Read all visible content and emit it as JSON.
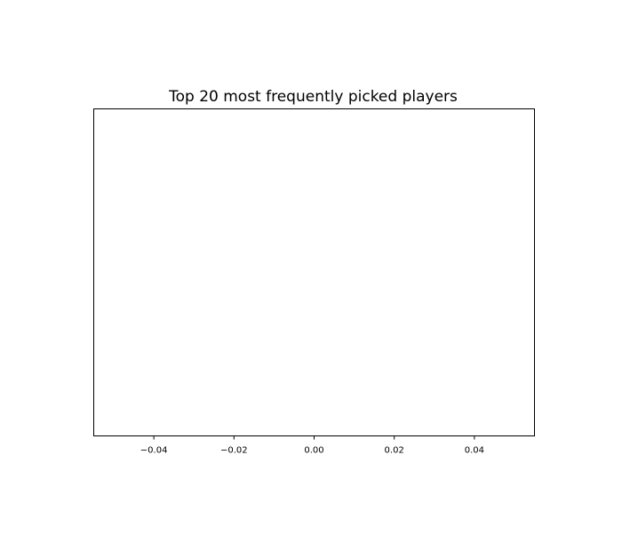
{
  "chart_data": {
    "type": "bar",
    "orientation": "horizontal",
    "title": "Top 20 most frequently picked players",
    "xlabel": "",
    "ylabel": "",
    "categories": [],
    "values": [],
    "xlim": [
      -0.055,
      0.055
    ],
    "xticks": [
      -0.04,
      -0.02,
      0.0,
      0.02,
      0.04
    ],
    "xtick_labels": [
      "−0.04",
      "−0.02",
      "0.00",
      "0.02",
      "0.04"
    ],
    "yticks": [],
    "grid": false,
    "legend": "none"
  }
}
